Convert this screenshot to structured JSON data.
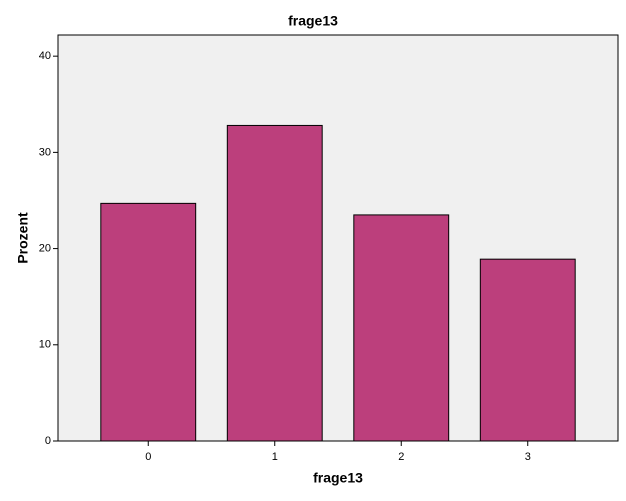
{
  "chart_data": {
    "type": "bar",
    "title": "frage13",
    "x_label": "frage13",
    "y_label": "Prozent",
    "categories": [
      "0",
      "1",
      "2",
      "3"
    ],
    "values": [
      24.7,
      32.8,
      23.5,
      18.9
    ],
    "color": "#bc3f7c",
    "ylim": [
      0,
      42.2
    ],
    "yticks": [
      0,
      10,
      20,
      30,
      40
    ],
    "grid": false
  }
}
